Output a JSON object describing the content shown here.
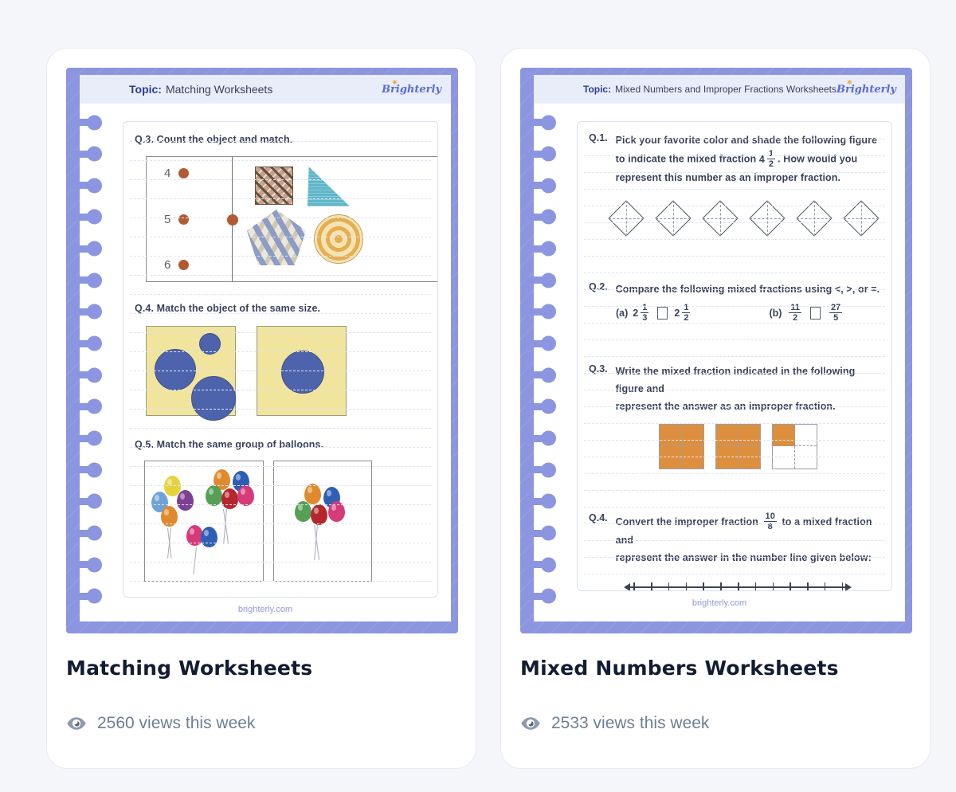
{
  "colors": {
    "purple": "#8b95e0",
    "header_bg": "#e9edf9",
    "topic_navy": "#2b3f8c",
    "box_border": "#d9e0f0",
    "sheet_line": "#dfe4f3",
    "footer_purple": "#8e9bd9",
    "title_color": "#131c33",
    "views_color": "#6e7e95",
    "views_icon": "#8d9ab0",
    "dot_rust": "#b25a33",
    "yellow_sq": "#f1e49c",
    "circle_blue": "#4d64ad",
    "teal": "#5fb7c9",
    "orange_fill": "#dd8f3e",
    "nline": "#3c4454",
    "pat_sq_base": "#c9a18b",
    "pat_sq_dark": "#5f5142",
    "pat_sq_light": "#e9d9c6",
    "pent_base": "#ece7da",
    "pent_blue": "#8b9cc7",
    "pent_tan": "#cfc9b4",
    "pcirc_base": "#f6e3b2",
    "pcirc_orange": "#e5ae53",
    "balloon_yellow": "#e5d23f",
    "balloon_lblue": "#6fa3d8",
    "balloon_purple": "#7c3f92",
    "balloon_orange": "#e08a2e",
    "balloon_green": "#55a055",
    "balloon_red": "#b5272c",
    "balloon_blue": "#2f5fb5",
    "balloon_pink": "#d63a78"
  },
  "cards": [
    {
      "topic_label": "Topic:",
      "topic": "Matching Worksheets",
      "logo": "Brighterly",
      "sun_icon": "✳",
      "footer": "brighterly.com",
      "title": "Matching Worksheets",
      "views": "2560 views this week",
      "q3_label": "Q.3. Count the object and match.",
      "q4_label": "Q.4. Match the object of the same size.",
      "q5_label": "Q.5. Match the same group of balloons.",
      "match_numbers": [
        "4",
        "5",
        "6"
      ]
    },
    {
      "topic_label": "Topic:",
      "topic": "Mixed Numbers and Improper Fractions Worksheets",
      "logo": "Brighterly",
      "sun_icon": "✳",
      "footer": "brighterly.com",
      "title": "Mixed Numbers Worksheets",
      "views": "2533 views this week",
      "q1": {
        "no": "Q.1.",
        "before": "Pick your favorite color and shade the following figure to indicate the mixed fraction",
        "whole": "4",
        "num": "1",
        "den": "2",
        "after": ". How would you represent this number as an improper fraction."
      },
      "q2": {
        "no": "Q.2.",
        "text": "Compare the following mixed fractions using <, >, or =.",
        "a_label": "(a)",
        "a1_whole": "2",
        "a1_num": "1",
        "a1_den": "3",
        "a2_whole": "2",
        "a2_num": "1",
        "a2_den": "2",
        "b_label": "(b)",
        "b1_num": "11",
        "b1_den": "2",
        "b2_num": "27",
        "b2_den": "5"
      },
      "q3": {
        "no": "Q.3.",
        "line1": "Write the mixed fraction indicated in the following figure and",
        "line2": "represent the answer as an improper fraction."
      },
      "q4": {
        "no": "Q.4.",
        "before": "Convert the improper fraction",
        "num": "10",
        "den": "8",
        "after": "to a mixed fraction and",
        "line2": "represent the answer in the number line given below:"
      }
    }
  ]
}
